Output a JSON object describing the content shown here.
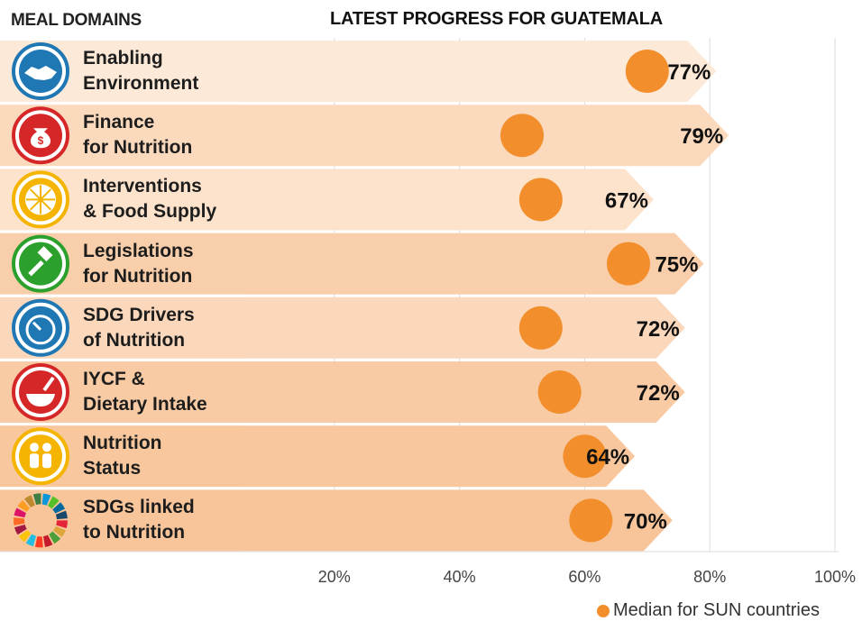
{
  "header": {
    "domains_label": "MEAL DOMAINS",
    "title": "LATEST PROGRESS FOR GUATEMALA"
  },
  "legend": {
    "median_label": "Median for SUN countries"
  },
  "colors": {
    "bar_light": "#fde6d2",
    "bar_dark": "#f8c9a0",
    "median_dot": "#f28e2b",
    "gridline": "#dddddd"
  },
  "chart_data": {
    "type": "bar",
    "orientation": "horizontal",
    "title": "LATEST PROGRESS FOR GUATEMALA",
    "xlim": [
      0,
      100
    ],
    "x_ticks": [
      "20%",
      "40%",
      "60%",
      "80%",
      "100%"
    ],
    "x_tick_values": [
      20,
      40,
      60,
      80,
      100
    ],
    "grid": true,
    "legend_position": "bottom-right",
    "categories": [
      {
        "line1": "Enabling",
        "line2": "Environment",
        "icon": "handshake-icon"
      },
      {
        "line1": "Finance",
        "line2": "for Nutrition",
        "icon": "money-bag-icon"
      },
      {
        "line1": "Interventions",
        "line2": "& Food Supply",
        "icon": "citrus-icon"
      },
      {
        "line1": "Legislations",
        "line2": "for Nutrition",
        "icon": "gavel-icon"
      },
      {
        "line1": "SDG Drivers",
        "line2": "of Nutrition",
        "icon": "gauge-icon"
      },
      {
        "line1": "IYCF &",
        "line2": "Dietary Intake",
        "icon": "mortar-bowl-icon"
      },
      {
        "line1": "Nutrition",
        "line2": "Status",
        "icon": "children-icon"
      },
      {
        "line1": "SDGs linked",
        "line2": "to Nutrition",
        "icon": "sdg-wheel-icon"
      }
    ],
    "series": [
      {
        "values": [
          77,
          79,
          67,
          75,
          72,
          72,
          64,
          70
        ],
        "labels": [
          "77%",
          "79%",
          "67%",
          "75%",
          "72%",
          "72%",
          "64%",
          "70%"
        ]
      },
      {
        "name": "Median for SUN countries",
        "values": [
          70,
          50,
          53,
          67,
          53,
          56,
          60,
          61
        ]
      }
    ]
  }
}
